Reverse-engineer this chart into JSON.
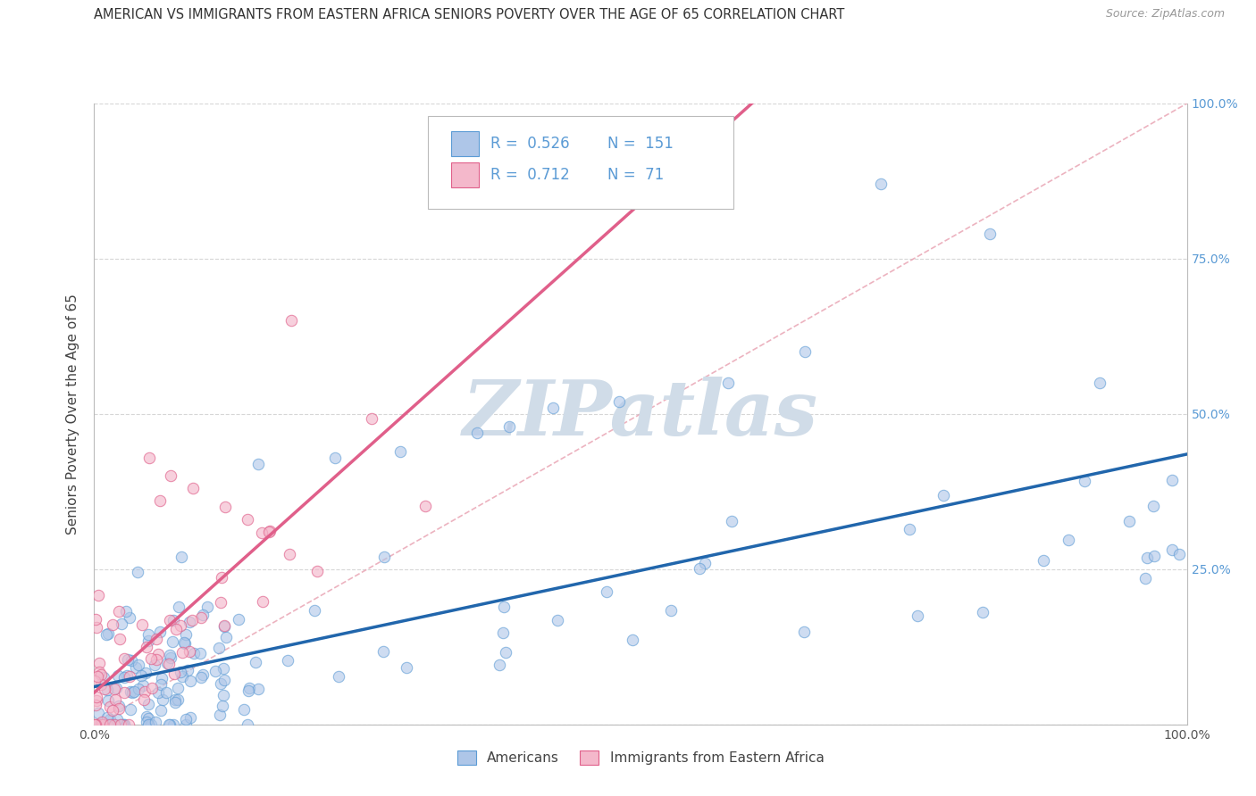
{
  "title": "AMERICAN VS IMMIGRANTS FROM EASTERN AFRICA SENIORS POVERTY OVER THE AGE OF 65 CORRELATION CHART",
  "source": "Source: ZipAtlas.com",
  "ylabel": "Seniors Poverty Over the Age of 65",
  "r1": 0.526,
  "n1": 151,
  "r2": 0.712,
  "n2": 71,
  "color_blue_fill": "#aec6e8",
  "color_blue_edge": "#5b9bd5",
  "color_pink_fill": "#f4b8cb",
  "color_pink_edge": "#e05f8a",
  "color_blue_line": "#2166ac",
  "color_pink_line": "#e05f8a",
  "color_diag": "#e8a0b0",
  "background": "#ffffff",
  "legend_label1": "Americans",
  "legend_label2": "Immigrants from Eastern Africa",
  "tick_color": "#5b9bd5",
  "grid_color": "#cccccc",
  "watermark_color": "#d0dce8",
  "title_color": "#333333",
  "source_color": "#999999"
}
